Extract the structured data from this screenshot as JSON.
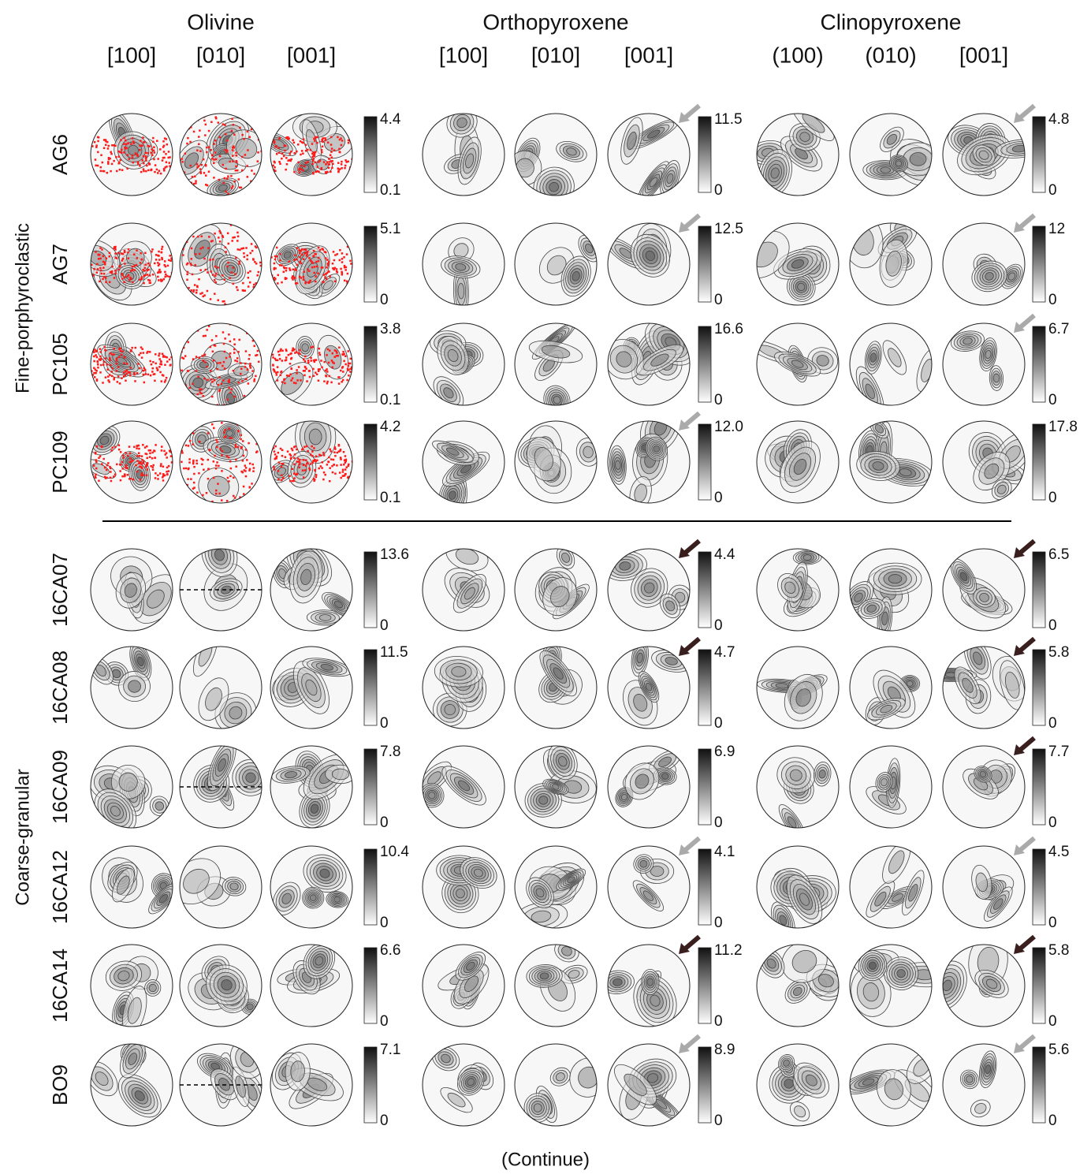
{
  "minerals": [
    {
      "name": "Olivine",
      "axes": [
        "[100]",
        "[010]",
        "[001]"
      ]
    },
    {
      "name": "Orthopyroxene",
      "axes": [
        "[100]",
        "[010]",
        "[001]"
      ]
    },
    {
      "name": "Clinopyroxene",
      "axes": [
        "(100)",
        "(010)",
        "[001]"
      ]
    }
  ],
  "groups": [
    {
      "label": "Fine-porphyroclastic",
      "samples": [
        {
          "name": "AG6",
          "scales": [
            {
              "max": "4.4",
              "min": "0.1"
            },
            {
              "max": "11.5",
              "min": "0"
            },
            {
              "max": "4.8",
              "min": "0"
            }
          ],
          "arrows": [
            {
              "mineral": 1,
              "color": "#aaaaaa"
            },
            {
              "mineral": 2,
              "color": "#aaaaaa"
            }
          ]
        },
        {
          "name": "AG7",
          "scales": [
            {
              "max": "5.1",
              "min": "0"
            },
            {
              "max": "12.5",
              "min": "0"
            },
            {
              "max": "12",
              "min": "0"
            }
          ],
          "arrows": [
            {
              "mineral": 1,
              "color": "#aaaaaa"
            },
            {
              "mineral": 2,
              "color": "#aaaaaa"
            }
          ]
        },
        {
          "name": "PC105",
          "scales": [
            {
              "max": "3.8",
              "min": "0.1"
            },
            {
              "max": "16.6",
              "min": "0"
            },
            {
              "max": "6.7",
              "min": "0"
            }
          ],
          "arrows": [
            {
              "mineral": 2,
              "color": "#aaaaaa"
            }
          ]
        },
        {
          "name": "PC109",
          "scales": [
            {
              "max": "4.2",
              "min": "0.1"
            },
            {
              "max": "12.0",
              "min": "0"
            },
            {
              "max": "17.8",
              "min": "0"
            }
          ],
          "arrows": [
            {
              "mineral": 1,
              "color": "#aaaaaa"
            }
          ]
        }
      ]
    },
    {
      "label": "Coarse-granular",
      "samples": [
        {
          "name": "16CA07",
          "scales": [
            {
              "max": "13.6",
              "min": "0"
            },
            {
              "max": "4.4",
              "min": "0"
            },
            {
              "max": "6.5",
              "min": "0"
            }
          ],
          "arrows": [
            {
              "mineral": 1,
              "color": "#3a1f1f"
            },
            {
              "mineral": 2,
              "color": "#3a1f1f"
            }
          ]
        },
        {
          "name": "16CA08",
          "scales": [
            {
              "max": "11.5",
              "min": "0"
            },
            {
              "max": "4.7",
              "min": "0"
            },
            {
              "max": "5.8",
              "min": "0"
            }
          ],
          "arrows": [
            {
              "mineral": 1,
              "color": "#3a1f1f"
            },
            {
              "mineral": 2,
              "color": "#3a1f1f"
            }
          ]
        },
        {
          "name": "16CA09",
          "scales": [
            {
              "max": "7.8",
              "min": "0"
            },
            {
              "max": "6.9",
              "min": "0"
            },
            {
              "max": "7.7",
              "min": "0"
            }
          ],
          "arrows": [
            {
              "mineral": 2,
              "color": "#3a1f1f"
            }
          ]
        },
        {
          "name": "16CA12",
          "scales": [
            {
              "max": "10.4",
              "min": "0"
            },
            {
              "max": "4.1",
              "min": "0"
            },
            {
              "max": "4.5",
              "min": "0"
            }
          ],
          "arrows": [
            {
              "mineral": 1,
              "color": "#aaaaaa"
            },
            {
              "mineral": 2,
              "color": "#aaaaaa"
            }
          ]
        },
        {
          "name": "16CA14",
          "scales": [
            {
              "max": "6.6",
              "min": "0"
            },
            {
              "max": "11.2",
              "min": "0"
            },
            {
              "max": "5.8",
              "min": "0"
            }
          ],
          "arrows": [
            {
              "mineral": 1,
              "color": "#3a1f1f"
            },
            {
              "mineral": 2,
              "color": "#3a1f1f"
            }
          ]
        },
        {
          "name": "BO9",
          "scales": [
            {
              "max": "7.1",
              "min": "0"
            },
            {
              "max": "8.9",
              "min": "0"
            },
            {
              "max": "5.6",
              "min": "0"
            }
          ],
          "arrows": [
            {
              "mineral": 1,
              "color": "#aaaaaa"
            },
            {
              "mineral": 2,
              "color": "#aaaaaa"
            }
          ]
        }
      ]
    }
  ],
  "footer": "(Continue)"
}
